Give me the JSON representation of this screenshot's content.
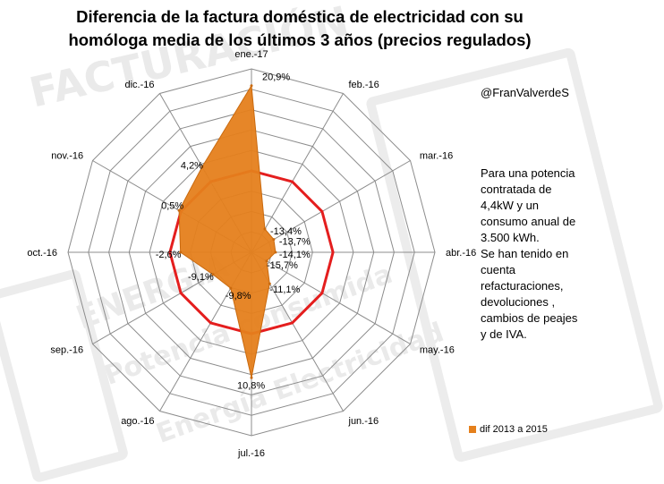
{
  "watermark": {
    "line1": "FACTURACIÓN",
    "line2": "ENERGÍA",
    "line3": "Potencia consumida",
    "line4": "Energía Electricidad"
  },
  "title": "Diferencia de la factura doméstica de electricidad con su homóloga media de los últimos 3 años (precios regulados)",
  "author": "@FranValverdeS",
  "note": {
    "lines": [
      "Para una potencia",
      "contratada de",
      "4,4kW y un",
      "consumo anual de",
      "3.500 kWh.",
      "Se han tenido en",
      "cuenta",
      "refacturaciones,",
      "devoluciones ,",
      "cambios de peajes",
      "y  de IVA."
    ]
  },
  "legend": {
    "label": "dif 2013 a 2015"
  },
  "colors": {
    "series": "#e5801c",
    "zero_ring": "#e41e1e",
    "grid": "#8c8c8c"
  },
  "chart_data": {
    "type": "radar",
    "title": "Diferencia de la factura doméstica de electricidad con su homóloga media de los últimos 3 años (precios regulados)",
    "categories": [
      "ene.-17",
      "feb.-16",
      "mar.-16",
      "abr.-16",
      "may.-16",
      "jun.-16",
      "jul.-16",
      "ago.-16",
      "sep.-16",
      "oct.-16",
      "nov.-16",
      "dic.-16"
    ],
    "series": [
      {
        "name": "dif 2013 a 2015",
        "values": [
          20.9,
          -13.4,
          -13.7,
          -14.1,
          -15.7,
          -11.1,
          10.8,
          -9.8,
          -9.1,
          -2.6,
          0.5,
          4.2
        ],
        "labels": [
          "20,9%",
          "-13,4%",
          "-13,7%",
          "-14,1%",
          "-15,7%",
          "-11,1%",
          "10,8%",
          "-9,8%",
          "-9,1%",
          "-2,6%",
          "0,5%",
          "4,2%"
        ]
      }
    ],
    "axis_range": [
      -20,
      25
    ],
    "gridlines": 9,
    "highlight_ring_value": 0
  }
}
